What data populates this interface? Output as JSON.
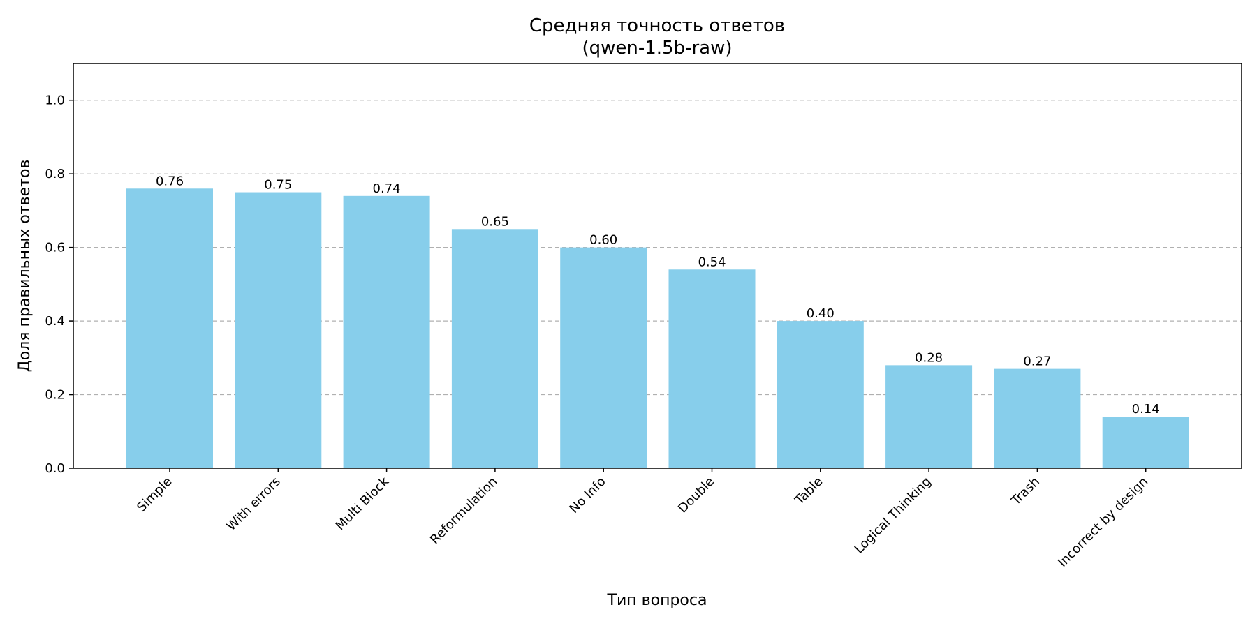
{
  "chart_data": {
    "type": "bar",
    "title": "Средняя точность ответов",
    "subtitle": "(qwen-1.5b-raw)",
    "xlabel": "Тип вопроса",
    "ylabel": "Доля правильных ответов",
    "categories": [
      "Simple",
      "With errors",
      "Multi Block",
      "Reformulation",
      "No Info",
      "Double",
      "Table",
      "Logical Thinking",
      "Trash",
      "Incorrect by design"
    ],
    "values": [
      0.76,
      0.75,
      0.74,
      0.65,
      0.6,
      0.54,
      0.4,
      0.28,
      0.27,
      0.14
    ],
    "value_labels": [
      "0.76",
      "0.75",
      "0.74",
      "0.65",
      "0.60",
      "0.54",
      "0.40",
      "0.28",
      "0.27",
      "0.14"
    ],
    "yticks": [
      0.0,
      0.2,
      0.4,
      0.6,
      0.8,
      1.0
    ],
    "ytick_labels": [
      "0.0",
      "0.2",
      "0.4",
      "0.6",
      "0.8",
      "1.0"
    ],
    "ylim": [
      0,
      1.1
    ],
    "grid": "y-dashed",
    "bar_color": "#87ceeb"
  }
}
